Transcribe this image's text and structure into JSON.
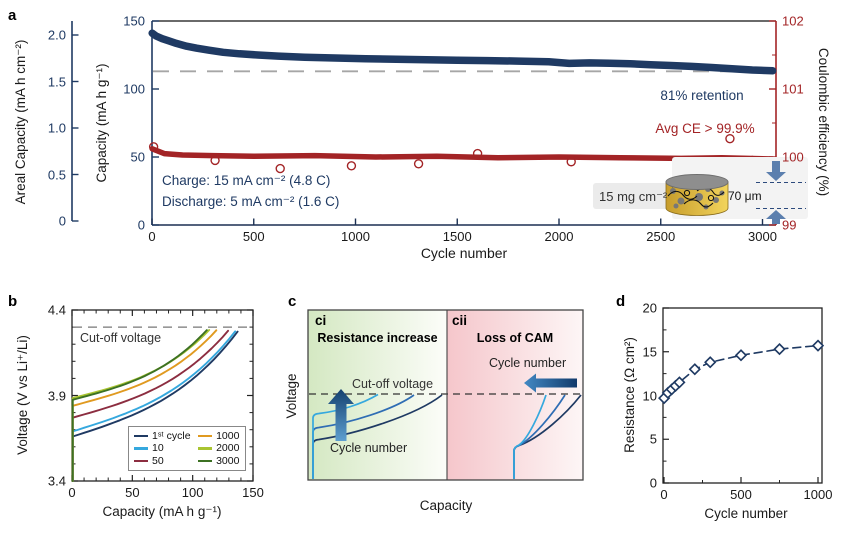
{
  "colors": {
    "navy": "#1f3a63",
    "red": "#a32426",
    "cyan": "#35a8de",
    "steel_blue": "#2f6db4",
    "maroon": "#8c2d40",
    "orange": "#e09a20",
    "yellow_green": "#a9c431",
    "dark_green": "#3c7123",
    "dash_gray": "#a6a6a6",
    "arrow_blue": "#5b7fae",
    "gold": "#e8c24a"
  },
  "panel_labels": {
    "a": "a",
    "b": "b",
    "c": "c",
    "d": "d"
  },
  "chart_data": [
    {
      "panel": "a",
      "type": "scatter",
      "xlabel": "Cycle number",
      "ylabel_areal": "Areal Capacity (mA h cm⁻²)",
      "ylabel_capacity": "Capacity (mA h g⁻¹)",
      "ylabel_ce": "Coulombic efficiency (%)",
      "xlim": [
        0,
        3090
      ],
      "x_ticks": [
        0,
        500,
        1000,
        1500,
        2000,
        2500,
        3000
      ],
      "capacity_lim": [
        0,
        150
      ],
      "capacity_ticks": [
        150,
        100,
        50,
        0
      ],
      "areal_ticks": [
        "2.0",
        "1.5",
        "1.0",
        "0.5",
        "0"
      ],
      "ce_lim": [
        99,
        102
      ],
      "ce_ticks": [
        102,
        101,
        100,
        99
      ],
      "retention_dash_capacity": 113,
      "annotations": {
        "retention": "81% retention",
        "avg_ce": "Avg CE > 99.9%",
        "charge": "Charge: 15 mA cm⁻² (4.8 C)",
        "discharge": "Discharge: 5 mA cm⁻² (1.6 C)",
        "loading": "15 mg cm⁻²",
        "thickness": "70 μm"
      },
      "capacity_series": {
        "name": "Discharge capacity (mA h g⁻¹)",
        "points": [
          [
            1,
            141
          ],
          [
            20,
            139
          ],
          [
            50,
            137
          ],
          [
            80,
            135.5
          ],
          [
            120,
            133.5
          ],
          [
            170,
            131.5
          ],
          [
            220,
            130
          ],
          [
            280,
            128.5
          ],
          [
            350,
            127
          ],
          [
            430,
            125.9
          ],
          [
            520,
            125
          ],
          [
            620,
            124.2
          ],
          [
            750,
            123.4
          ],
          [
            900,
            122.8
          ],
          [
            1050,
            122.3
          ],
          [
            1200,
            121.9
          ],
          [
            1350,
            121.5
          ],
          [
            1500,
            121.2
          ],
          [
            1650,
            120.9
          ],
          [
            1800,
            120.5
          ],
          [
            1950,
            120
          ],
          [
            2050,
            118.8
          ],
          [
            2150,
            119.2
          ],
          [
            2250,
            118.9
          ],
          [
            2350,
            118.5
          ],
          [
            2450,
            117.9
          ],
          [
            2550,
            117.3
          ],
          [
            2650,
            116.6
          ],
          [
            2750,
            115.8
          ],
          [
            2850,
            114.9
          ],
          [
            2950,
            114
          ],
          [
            3050,
            113.4
          ]
        ]
      },
      "ce_series": {
        "name": "Coulombic efficiency (%)",
        "points": [
          [
            1,
            100.12
          ],
          [
            60,
            100.05
          ],
          [
            150,
            100.03
          ],
          [
            300,
            100.02
          ],
          [
            500,
            100.01
          ],
          [
            800,
            100.02
          ],
          [
            1100,
            100.0
          ],
          [
            1400,
            100.01
          ],
          [
            1700,
            99.99
          ],
          [
            2000,
            100.0
          ],
          [
            2300,
            99.99
          ],
          [
            2600,
            99.98
          ],
          [
            2800,
            99.99
          ],
          [
            3050,
            99.97
          ]
        ],
        "outliers": [
          [
            8,
            100.15
          ],
          [
            310,
            99.95
          ],
          [
            630,
            99.83
          ],
          [
            980,
            99.87
          ],
          [
            1310,
            99.9
          ],
          [
            1600,
            100.05
          ],
          [
            2060,
            99.93
          ],
          [
            2840,
            100.27
          ],
          [
            2950,
            99.95
          ]
        ]
      }
    },
    {
      "panel": "b",
      "type": "line",
      "xlabel": "Capacity (mA h g⁻¹)",
      "ylabel": "Voltage (V vs Li⁺/Li)",
      "xlim": [
        0,
        150
      ],
      "ylim": [
        3.4,
        4.4
      ],
      "x_ticks": [
        0,
        50,
        100,
        150
      ],
      "y_ticks": [
        "4.4",
        "3.9",
        "3.4"
      ],
      "cutoff_voltage": 4.3,
      "cutoff_label": "Cut-off voltage",
      "series": [
        {
          "label": "1ˢᵗ cycle",
          "color": "#1f3a63",
          "onset_voltage": 3.66,
          "end_capacity": 140
        },
        {
          "label": "10",
          "color": "#35a8de",
          "onset_voltage": 3.69,
          "end_capacity": 138
        },
        {
          "label": "50",
          "color": "#8c2d40",
          "onset_voltage": 3.77,
          "end_capacity": 132
        },
        {
          "label": "1000",
          "color": "#e09a20",
          "onset_voltage": 3.84,
          "end_capacity": 122
        },
        {
          "label": "2000",
          "color": "#a9c431",
          "onset_voltage": 3.885,
          "end_capacity": 116
        },
        {
          "label": "3000",
          "color": "#3c7123",
          "onset_voltage": 3.875,
          "end_capacity": 114
        }
      ]
    },
    {
      "panel": "c",
      "type": "schematic",
      "xlabel": "Capacity",
      "ylabel": "Voltage",
      "cutoff_label": "Cut-off voltage",
      "subpanels": [
        {
          "label": "ci",
          "title": "Resistance increase",
          "annotation": "Cycle number"
        },
        {
          "label": "cii",
          "title": "Loss of CAM",
          "annotation": "Cycle number"
        }
      ]
    },
    {
      "panel": "d",
      "type": "scatter",
      "xlabel": "Cycle number",
      "ylabel": "Resistance (Ω cm²)",
      "xlim": [
        0,
        1030
      ],
      "ylim": [
        0,
        20
      ],
      "x_ticks": [
        0,
        500,
        1000
      ],
      "y_ticks": [
        20,
        15,
        10,
        5,
        0
      ],
      "points": [
        [
          1,
          9.7
        ],
        [
          25,
          10.3
        ],
        [
          50,
          10.7
        ],
        [
          75,
          11.1
        ],
        [
          100,
          11.5
        ],
        [
          200,
          13.0
        ],
        [
          300,
          13.8
        ],
        [
          500,
          14.6
        ],
        [
          750,
          15.3
        ],
        [
          1000,
          15.7
        ]
      ]
    }
  ]
}
